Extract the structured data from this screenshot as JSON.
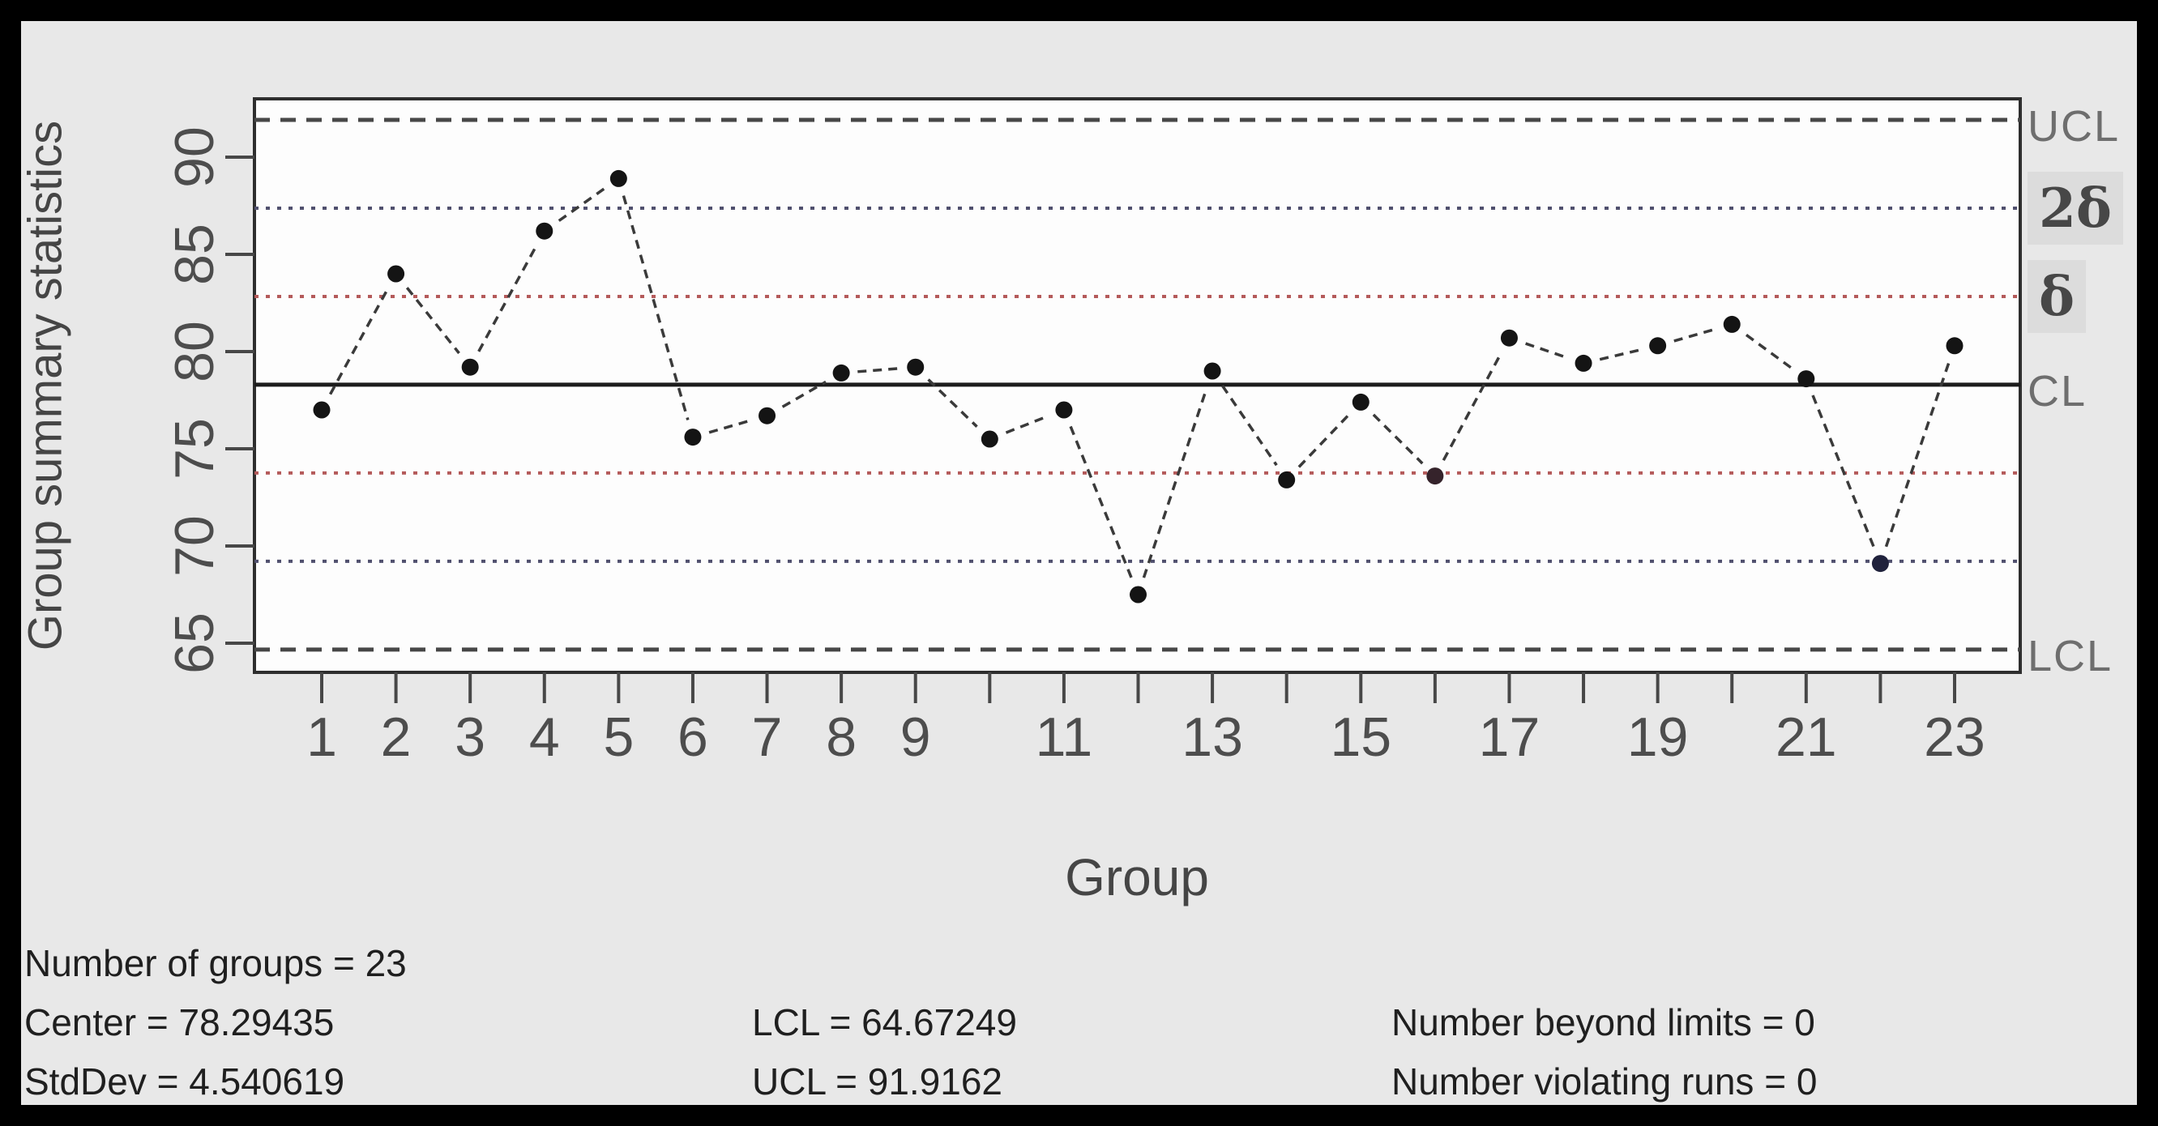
{
  "page": {
    "background": "#e8e8e8",
    "border_color": "#000000"
  },
  "colors": {
    "plot_bg": "#fdfdfd",
    "box_stroke": "#2e2e2e",
    "limit_dash": "#474747",
    "cl_line": "#1c1c1c",
    "sigma1_line": "#b45a5a",
    "sigma2_line": "#50506e",
    "series_line": "#3a3a3a",
    "point": "#141414",
    "tick": "#474747"
  },
  "chart_data": {
    "type": "line",
    "title": "",
    "xlabel": "Group",
    "ylabel": "Group summary statistics",
    "x": [
      1,
      2,
      3,
      4,
      5,
      6,
      7,
      8,
      9,
      10,
      11,
      12,
      13,
      14,
      15,
      16,
      17,
      18,
      19,
      20,
      21,
      22,
      23
    ],
    "values": [
      77.0,
      84.0,
      79.2,
      86.2,
      88.9,
      75.6,
      76.7,
      78.9,
      79.2,
      75.5,
      77.0,
      67.5,
      79.0,
      73.4,
      77.4,
      73.6,
      80.7,
      79.4,
      80.3,
      81.4,
      78.6,
      69.1,
      80.3
    ],
    "center": 78.29435,
    "std_dev": 4.540619,
    "lines": {
      "ucl": 91.9162,
      "two_sigma_upper": 87.37559,
      "one_sigma_upper": 82.83497,
      "cl": 78.29435,
      "one_sigma_lower": 73.75373,
      "two_sigma_lower": 69.21311,
      "lcl": 64.67249
    },
    "y_ticks": [
      65,
      70,
      75,
      80,
      85,
      90
    ],
    "x_tick_label_positions": [
      1,
      2,
      3,
      4,
      5,
      6,
      7,
      8,
      9,
      11,
      13,
      15,
      17,
      19,
      21,
      23
    ],
    "x_tick_labels": [
      "1",
      "2",
      "3",
      "4",
      "5",
      "6",
      "7",
      "8",
      "9",
      "11",
      "13",
      "15",
      "17",
      "19",
      "21",
      "23"
    ],
    "ylim": [
      63.5,
      93.0
    ],
    "xlim": [
      0.12,
      23.88
    ],
    "grid": false,
    "legend": "none",
    "point_color_overrides": {
      "16": "#35232b",
      "22": "#20223c"
    }
  },
  "limit_labels": [
    {
      "text": "UCL",
      "at": "ucl",
      "style": "plain"
    },
    {
      "text": "2δ",
      "at": "two_sigma_upper",
      "style": "sigma"
    },
    {
      "text": "δ",
      "at": "one_sigma_upper",
      "style": "sigma"
    },
    {
      "text": "CL",
      "at": "cl",
      "style": "plain"
    },
    {
      "text": "LCL",
      "at": "lcl",
      "style": "plain"
    }
  ],
  "stats": {
    "number_of_groups": "Number of groups = 23",
    "center": "Center = 78.29435",
    "std_dev": "StdDev = 4.540619",
    "lcl": "LCL = 64.67249",
    "ucl": "UCL = 91.9162",
    "beyond": "Number beyond limits = 0",
    "violating": "Number violating runs = 0"
  },
  "stats_columns": [
    {
      "x": 30,
      "lines": [
        {
          "row": 0,
          "key": "number_of_groups"
        },
        {
          "row": 1,
          "key": "center"
        },
        {
          "row": 2,
          "key": "std_dev"
        }
      ]
    },
    {
      "x": 928,
      "lines": [
        {
          "row": 1,
          "key": "lcl"
        },
        {
          "row": 2,
          "key": "ucl"
        }
      ]
    },
    {
      "x": 1717,
      "lines": [
        {
          "row": 1,
          "key": "beyond"
        },
        {
          "row": 2,
          "key": "violating"
        }
      ]
    }
  ]
}
